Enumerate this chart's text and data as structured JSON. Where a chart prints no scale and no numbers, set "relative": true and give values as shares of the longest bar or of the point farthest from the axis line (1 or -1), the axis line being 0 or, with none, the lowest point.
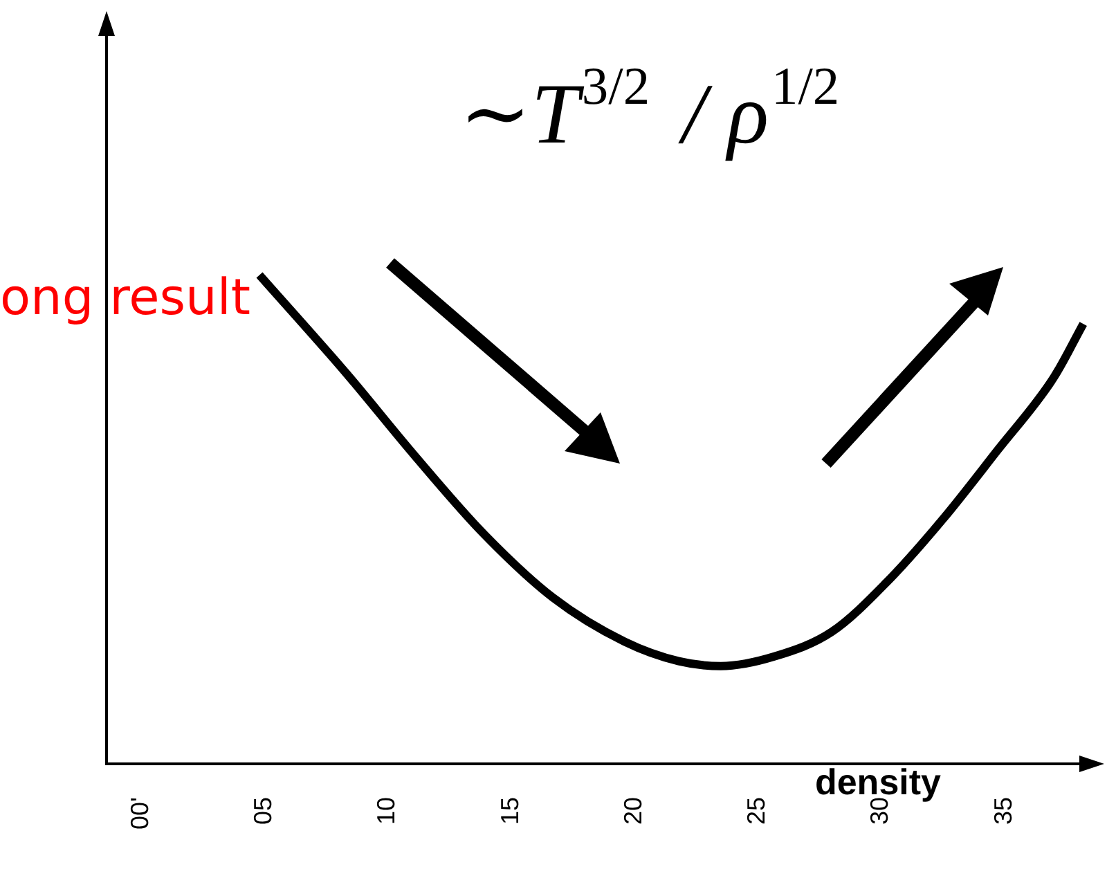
{
  "chart_data": {
    "type": "line",
    "relative": true,
    "xlabel": "density",
    "tick_labels": "x",
    "grid": false,
    "legend": false,
    "marker": "none",
    "line_style": "solid",
    "xlim": [
      -1.4,
      38.6
    ],
    "xticks": [
      {
        "value": 0,
        "label": "00'"
      },
      {
        "value": 5,
        "label": "05"
      },
      10,
      15,
      20,
      25,
      30,
      35
    ],
    "annotations": [
      "∼T$^{3/2}$ / ρ$^{1/2}$",
      "ong result"
    ],
    "series": [
      {
        "color": "#000000",
        "x": [
          4.8,
          8.3,
          11.1,
          13.9,
          16.7,
          19.6,
          21.8,
          23.5,
          25.7,
          28.0,
          30.2,
          32.5,
          34.7,
          37.0,
          38.2
        ],
        "values": [
          1.0,
          0.8,
          0.63,
          0.47,
          0.34,
          0.25,
          0.21,
          0.2,
          0.22,
          0.27,
          0.37,
          0.5,
          0.64,
          0.79,
          0.9
        ]
      }
    ]
  }
}
